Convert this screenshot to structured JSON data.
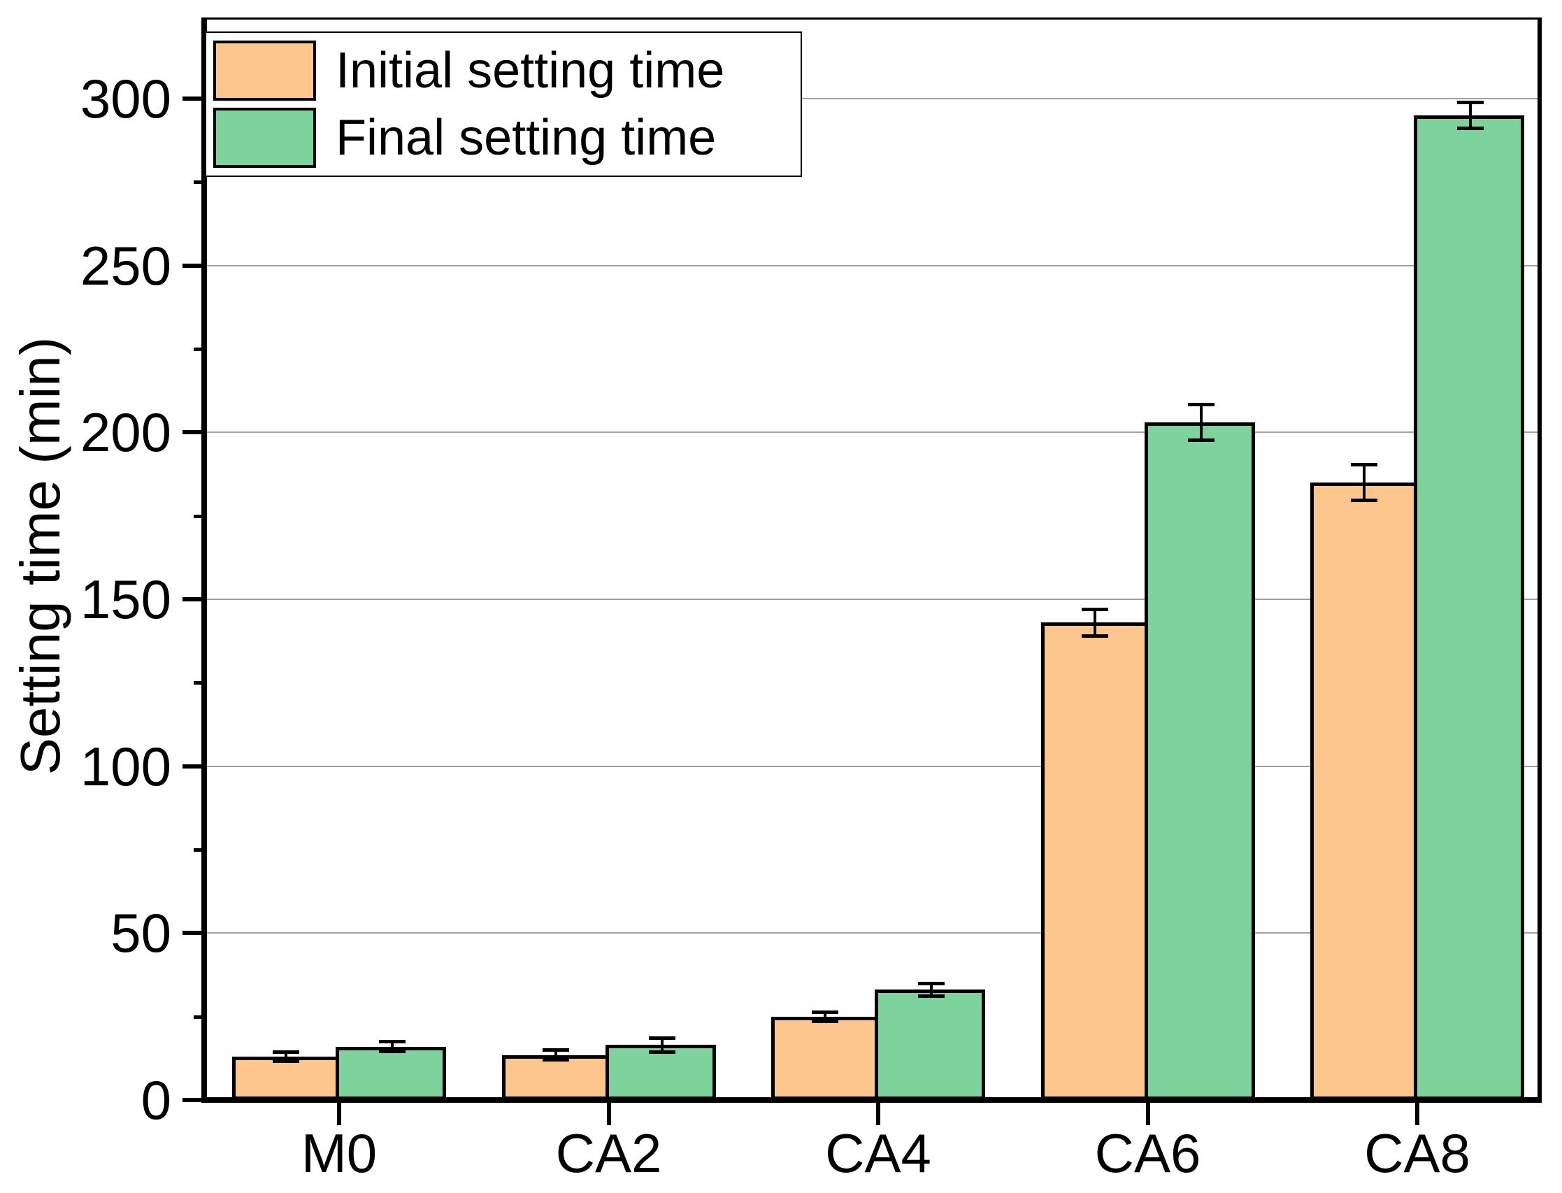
{
  "chart_data": {
    "type": "bar",
    "title": "",
    "categories": [
      "M0",
      "CA2",
      "CA4",
      "CA6",
      "CA8"
    ],
    "series": [
      {
        "name": "Initial setting time",
        "color": "#FCC68D",
        "values": [
          13,
          13.5,
          25,
          143,
          185
        ],
        "errors": [
          1.5,
          1.6,
          1.5,
          4,
          5.5
        ]
      },
      {
        "name": "Final setting time",
        "color": "#7DD39B",
        "values": [
          16,
          16.5,
          33,
          203,
          295
        ],
        "errors": [
          1.5,
          2.2,
          2,
          5.5,
          4
        ]
      }
    ],
    "xlabel": "",
    "ylabel": "Setting time (min)",
    "ylim": [
      0,
      325
    ],
    "yticks": [
      0,
      50,
      100,
      150,
      200,
      250,
      300
    ],
    "yminor_ticks": [
      25,
      75,
      125,
      175,
      225,
      275
    ],
    "grid": "horizontal-major",
    "gridline_color": "#A0A0A0",
    "bar_edge_color": "#000000",
    "error_bar_color": "#000000",
    "legend_position": "top-left"
  }
}
